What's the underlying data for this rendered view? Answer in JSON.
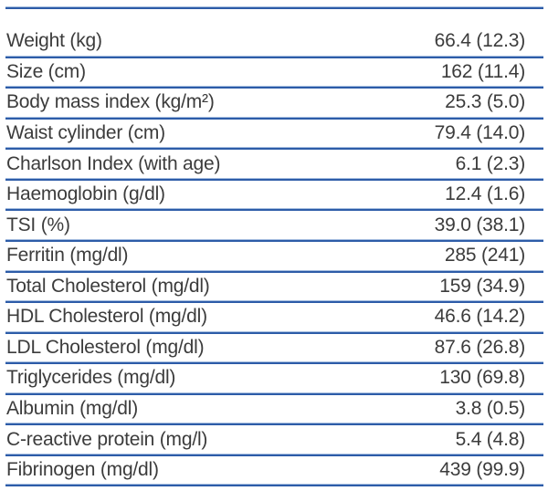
{
  "table": {
    "description": "Descriptive statistics table, values shown as mean (SD)",
    "colors": {
      "rule_dark": "#2d5ca8",
      "rule_light": "#a5bddf",
      "text": "#3c3c3c"
    },
    "rows": [
      {
        "label": "Weight (kg)",
        "value": "66.4 (12.3)"
      },
      {
        "label": "Size (cm)",
        "value": "162 (11.4)"
      },
      {
        "label": "Body mass index (kg/m²)",
        "value": "25.3 (5.0)"
      },
      {
        "label": "Waist cylinder (cm)",
        "value": "79.4 (14.0)"
      },
      {
        "label": "Charlson Index (with age)",
        "value": "6.1 (2.3)"
      },
      {
        "label": "Haemoglobin (g/dl)",
        "value": "12.4 (1.6)"
      },
      {
        "label": "TSI (%)",
        "value": "39.0 (38.1)"
      },
      {
        "label": "Ferritin (mg/dl)",
        "value": "285 (241)"
      },
      {
        "label": "Total Cholesterol (mg/dl)",
        "value": "159 (34.9)"
      },
      {
        "label": "HDL Cholesterol (mg/dl)",
        "value": "46.6 (14.2)"
      },
      {
        "label": "LDL Cholesterol (mg/dl)",
        "value": "87.6 (26.8)"
      },
      {
        "label": "Triglycerides (mg/dl)",
        "value": "130 (69.8)"
      },
      {
        "label": "Albumin (mg/dl)",
        "value": "3.8 (0.5)"
      },
      {
        "label": "C-reactive protein (mg/l)",
        "value": "5.4 (4.8)"
      },
      {
        "label": "Fibrinogen (mg/dl)",
        "value": "439 (99.9)"
      }
    ]
  }
}
